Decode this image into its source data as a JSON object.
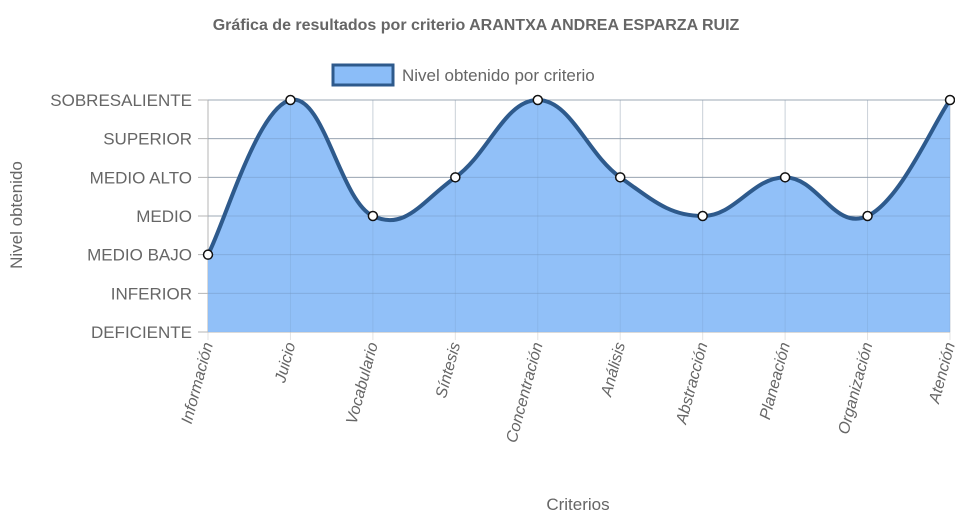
{
  "chart_data": {
    "type": "area",
    "title": "Gráfica de resultados por criterio ARANTXA ANDREA ESPARZA RUIZ",
    "xlabel": "Criterios",
    "ylabel": "Nivel obtenido",
    "categories": [
      "Información",
      "Juicio",
      "Vocabulario",
      "Síntesis",
      "Concentración",
      "Análisis",
      "Abstracción",
      "Planeación",
      "Organización",
      "Atención"
    ],
    "y_levels": [
      "DEFICIENTE",
      "INFERIOR",
      "MEDIO BAJO",
      "MEDIO",
      "MEDIO ALTO",
      "SUPERIOR",
      "SOBRESALIENTE"
    ],
    "ylim": [
      0,
      6
    ],
    "series": [
      {
        "name": "Nivel obtenido por criterio",
        "values": [
          2,
          6,
          3,
          4,
          6,
          4,
          3,
          4,
          3,
          6
        ],
        "fill_color": "#8bbdf8",
        "line_color": "#2e5a8c"
      }
    ],
    "legend_position": "top",
    "grid": true
  }
}
